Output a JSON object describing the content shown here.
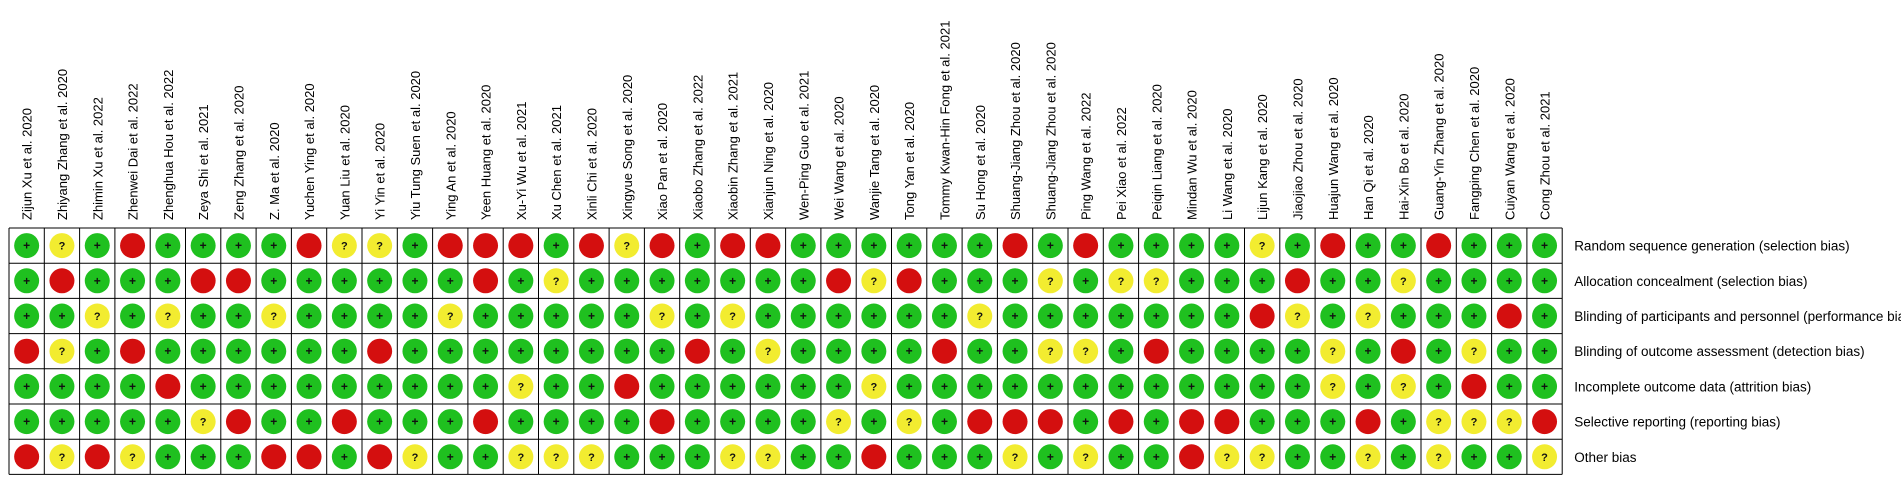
{
  "chart_data": {
    "type": "table",
    "studies": [
      "Zijun Xu et al. 2020",
      "Zhiyang Zhang et al. 2020",
      "Zhimin Xu et al. 2022",
      "Zhenwei Dai et al. 2022",
      "Zhenghua Hou et al. 2022",
      "Zeya Shi et al. 2021",
      "Zeng Zhang et al. 2020",
      "Z. Ma et al. 2020",
      "Yuchen Ying et al. 2020",
      "Yuan Liu et al. 2020",
      "Yi Yin et al. 2020",
      "Yiu Tung Suen et al. 2020",
      "Ying An et al. 2020",
      "Yeen Huang et al. 2020",
      "Xu-Yi Wu et al. 2021",
      "Xu Chen et al. 2021",
      "Xinli Chi et al. 2020",
      "Xingyue Song et al. 2020",
      "Xiao Pan et al. 2020",
      "Xiaobo Zhang et al. 2022",
      "Xiaobin Zhang et al. 2021",
      "Xianjun Ning et al. 2020",
      "Wen-Ping Guo et al. 2021",
      "Wei Wang et al. 2020",
      "Wanjie Tang et al. 2020",
      "Tong Yan et al. 2020",
      "Tommy Kwan-Hin Fong et al. 2021",
      "Su Hong et al. 2020",
      "Shuang-Jiang Zhou et al. 2020",
      "Shuang-Jiang Zhou et al. 2020",
      "Ping Wang et al. 2022",
      "Pei Xiao et al. 2022",
      "Peiqin Liang et al. 2020",
      "Mindan Wu et al. 2020",
      "Li Wang et al. 2020",
      "Lijun Kang et al. 2020",
      "Jiaojiao Zhou et al. 2020",
      "Huajun Wang et al. 2020",
      "Han Qi et al. 2020",
      "Hai-Xin Bo et al. 2020",
      "Guang-Yin Zhang et al. 2020",
      "Fangping Chen et al. 2020",
      "Cuiyan Wang et al. 2020",
      "Cong Zhou et al. 2021"
    ],
    "domains": [
      "Random sequence generation (selection bias)",
      "Allocation concealment (selection bias)",
      "Blinding of participants and personnel (performance bias)",
      "Blinding of outcome assessment (detection bias)",
      "Incomplete outcome data (attrition bias)",
      "Selective reporting (reporting bias)",
      "Other bias"
    ],
    "rows": [
      [
        "+",
        "?",
        "+",
        "-",
        "+",
        "+",
        "+",
        "+",
        "-",
        "?",
        "?",
        "+",
        "-",
        "-",
        "-",
        "+",
        "-",
        "?",
        "-",
        "+",
        "-",
        "-",
        "+",
        "+",
        "+",
        "+",
        "+",
        "+",
        "-",
        "+",
        "-",
        "+",
        "+",
        "+",
        "+",
        "?",
        "+",
        "-",
        "+",
        "+",
        "-",
        "+",
        "+",
        "+"
      ],
      [
        "+",
        "-",
        "+",
        "+",
        "+",
        "-",
        "-",
        "+",
        "+",
        "+",
        "+",
        "+",
        "+",
        "-",
        "+",
        "?",
        "+",
        "+",
        "+",
        "+",
        "+",
        "+",
        "+",
        "-",
        "?",
        "-",
        "+",
        "+",
        "+",
        "?",
        "+",
        "?",
        "?",
        "+",
        "+",
        "+",
        "-",
        "+",
        "+",
        "?",
        "+",
        "+",
        "+",
        "+"
      ],
      [
        "+",
        "+",
        "?",
        "+",
        "?",
        "+",
        "+",
        "?",
        "+",
        "+",
        "+",
        "+",
        "?",
        "+",
        "+",
        "+",
        "+",
        "+",
        "?",
        "+",
        "?",
        "+",
        "+",
        "+",
        "+",
        "+",
        "+",
        "?",
        "+",
        "+",
        "+",
        "+",
        "+",
        "+",
        "+",
        "-",
        "?",
        "+",
        "?",
        "+",
        "+",
        "+",
        "-",
        "+"
      ],
      [
        "-",
        "?",
        "+",
        "-",
        "+",
        "+",
        "+",
        "+",
        "+",
        "+",
        "-",
        "+",
        "+",
        "+",
        "+",
        "+",
        "+",
        "+",
        "+",
        "-",
        "+",
        "?",
        "+",
        "+",
        "+",
        "+",
        "-",
        "+",
        "+",
        "?",
        "?",
        "+",
        "-",
        "+",
        "+",
        "+",
        "+",
        "?",
        "+",
        "-",
        "+",
        "?",
        "+",
        "+"
      ],
      [
        "+",
        "+",
        "+",
        "+",
        "-",
        "+",
        "+",
        "+",
        "+",
        "+",
        "+",
        "+",
        "+",
        "+",
        "?",
        "+",
        "+",
        "-",
        "+",
        "+",
        "+",
        "+",
        "+",
        "+",
        "?",
        "+",
        "+",
        "+",
        "+",
        "+",
        "+",
        "+",
        "+",
        "+",
        "+",
        "+",
        "+",
        "?",
        "+",
        "?",
        "+",
        "-",
        "+",
        "+"
      ],
      [
        "+",
        "+",
        "+",
        "+",
        "+",
        "?",
        "-",
        "+",
        "+",
        "-",
        "+",
        "+",
        "+",
        "-",
        "+",
        "+",
        "+",
        "+",
        "-",
        "+",
        "+",
        "+",
        "+",
        "?",
        "+",
        "?",
        "+",
        "-",
        "-",
        "-",
        "+",
        "-",
        "+",
        "-",
        "-",
        "+",
        "+",
        "+",
        "-",
        "+",
        "?",
        "?",
        "?",
        "-"
      ],
      [
        "-",
        "?",
        "-",
        "?",
        "+",
        "+",
        "+",
        "-",
        "-",
        "+",
        "-",
        "?",
        "+",
        "+",
        "?",
        "?",
        "?",
        "+",
        "+",
        "+",
        "?",
        "?",
        "+",
        "+",
        "-",
        "+",
        "+",
        "+",
        "?",
        "+",
        "?",
        "+",
        "+",
        "-",
        "?",
        "?",
        "+",
        "+",
        "?",
        "+",
        "?",
        "+",
        "+",
        "?"
      ]
    ],
    "symbols": {
      "low": "+",
      "unclear": "?",
      "high": ""
    },
    "colors": {
      "low": "#1fc01f",
      "unclear": "#f2ec30",
      "high": "#d40f0f"
    }
  }
}
